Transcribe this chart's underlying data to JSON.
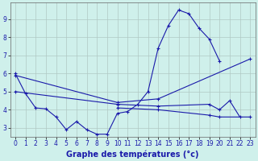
{
  "background_color": "#cff0eb",
  "grid_color": "#b0c8c4",
  "line_color": "#1a1aaa",
  "xlabel": "Graphe des températures (°c)",
  "xlabel_fontsize": 7,
  "tick_fontsize": 5.5,
  "ylim": [
    2.5,
    9.9
  ],
  "xlim": [
    -0.5,
    23.5
  ],
  "yticks": [
    3,
    4,
    5,
    6,
    7,
    8,
    9
  ],
  "xticks": [
    0,
    1,
    2,
    3,
    4,
    5,
    6,
    7,
    8,
    9,
    10,
    11,
    12,
    13,
    14,
    15,
    16,
    17,
    18,
    19,
    20,
    21,
    22,
    23
  ],
  "series": [
    {
      "x": [
        0,
        1,
        2,
        3,
        4,
        5,
        6,
        7,
        8,
        9,
        10,
        11,
        12,
        13,
        14,
        15,
        16,
        17,
        18,
        19,
        20
      ],
      "y": [
        6.0,
        4.9,
        4.1,
        4.05,
        3.6,
        2.9,
        3.35,
        2.9,
        2.65,
        2.65,
        3.8,
        3.9,
        4.3,
        5.0,
        7.4,
        8.65,
        9.5,
        9.3,
        8.5,
        7.9,
        6.7
      ]
    },
    {
      "comment": "upper flat line from 0 to 23 - goes 5.9 -> 4.4 -> 4.6 -> 6.8",
      "x": [
        0,
        10,
        14,
        23
      ],
      "y": [
        5.9,
        4.4,
        4.6,
        6.8
      ]
    },
    {
      "comment": "middle flat line - 5.0 -> 4.3 -> 4.2 -> 4.3 -> 4.0 -> 4.5 -> 3.6",
      "x": [
        0,
        10,
        14,
        19,
        20,
        21,
        22
      ],
      "y": [
        5.0,
        4.3,
        4.2,
        4.3,
        4.0,
        4.5,
        3.6
      ]
    },
    {
      "comment": "lower flat line - 4.1 -> 4.0 -> 3.7 -> 3.6 -> 3.6",
      "x": [
        10,
        14,
        19,
        20,
        23
      ],
      "y": [
        4.1,
        4.0,
        3.7,
        3.6,
        3.6
      ]
    }
  ]
}
